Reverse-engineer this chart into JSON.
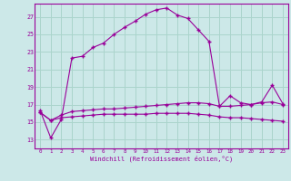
{
  "xlabel": "Windchill (Refroidissement éolien,°C)",
  "background_color": "#cce8e8",
  "grid_color": "#aad4cc",
  "line_color": "#990099",
  "x_ticks": [
    0,
    1,
    2,
    3,
    4,
    5,
    6,
    7,
    8,
    9,
    10,
    11,
    12,
    13,
    14,
    15,
    16,
    17,
    18,
    19,
    20,
    21,
    22,
    23
  ],
  "y_ticks": [
    13,
    15,
    17,
    19,
    21,
    23,
    25,
    27
  ],
  "ylim": [
    12.0,
    28.5
  ],
  "xlim": [
    -0.5,
    23.5
  ],
  "series1": [
    16.3,
    13.2,
    15.3,
    22.3,
    22.5,
    23.5,
    24.0,
    25.0,
    25.8,
    26.5,
    27.3,
    27.8,
    28.0,
    27.2,
    26.8,
    25.5,
    24.2,
    16.8,
    18.0,
    17.2,
    17.0,
    17.3,
    19.2,
    17.1
  ],
  "series2": [
    16.1,
    15.2,
    15.5,
    15.6,
    15.7,
    15.8,
    15.9,
    15.9,
    15.9,
    15.9,
    15.9,
    16.0,
    16.0,
    16.0,
    16.0,
    15.9,
    15.8,
    15.6,
    15.5,
    15.5,
    15.4,
    15.3,
    15.2,
    15.1
  ],
  "series3": [
    16.1,
    15.2,
    15.8,
    16.2,
    16.3,
    16.4,
    16.5,
    16.5,
    16.6,
    16.7,
    16.8,
    16.9,
    17.0,
    17.1,
    17.2,
    17.2,
    17.1,
    16.8,
    16.8,
    16.9,
    17.0,
    17.2,
    17.3,
    17.0
  ]
}
